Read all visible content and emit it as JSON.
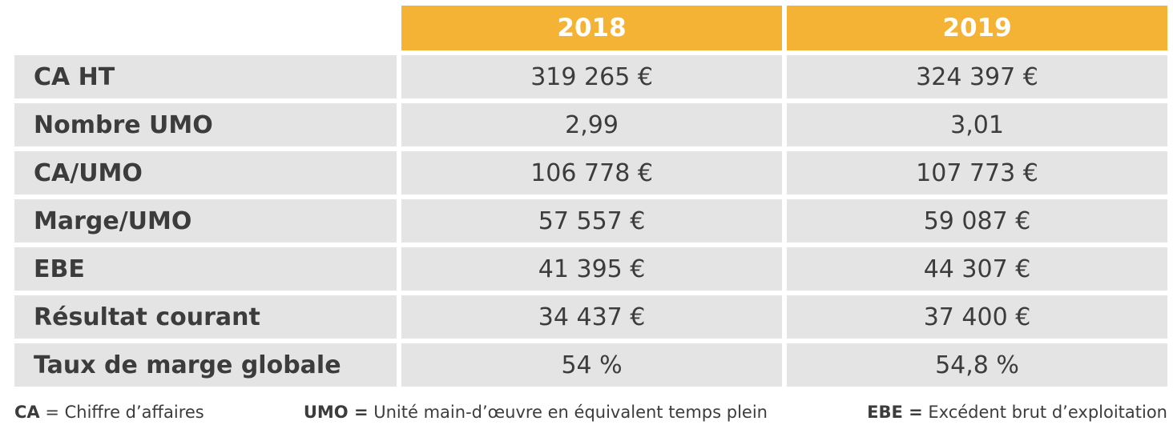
{
  "header": {
    "years": [
      "2018",
      "2019"
    ]
  },
  "rows": [
    {
      "label": "CA HT",
      "values": [
        "319 265 €",
        "324 397 €"
      ]
    },
    {
      "label": "Nombre UMO",
      "values": [
        "2,99",
        "3,01"
      ]
    },
    {
      "label": "CA/UMO",
      "values": [
        "106 778 €",
        "107 773 €"
      ]
    },
    {
      "label": "Marge/UMO",
      "values": [
        "57 557 €",
        "59 087 €"
      ]
    },
    {
      "label": "EBE",
      "values": [
        "41 395 €",
        "44 307 €"
      ]
    },
    {
      "label": "Résultat courant",
      "values": [
        "34 437 €",
        "37 400 €"
      ]
    },
    {
      "label": "Taux de marge globale",
      "values": [
        "54 %",
        "54,8 %"
      ]
    }
  ],
  "legend": [
    {
      "abbr": "CA",
      "sep": " = ",
      "text": "Chiffre d’affaires"
    },
    {
      "abbr": "UMO =",
      "sep": " ",
      "text": "Unité main-d’œuvre en équivalent temps plein"
    },
    {
      "abbr": "EBE =",
      "sep": " ",
      "text": "Excédent brut d’exploitation"
    }
  ],
  "colors": {
    "header_bg": "#f5b335",
    "cell_bg": "#e4e4e4",
    "text": "#3c3c3c"
  }
}
